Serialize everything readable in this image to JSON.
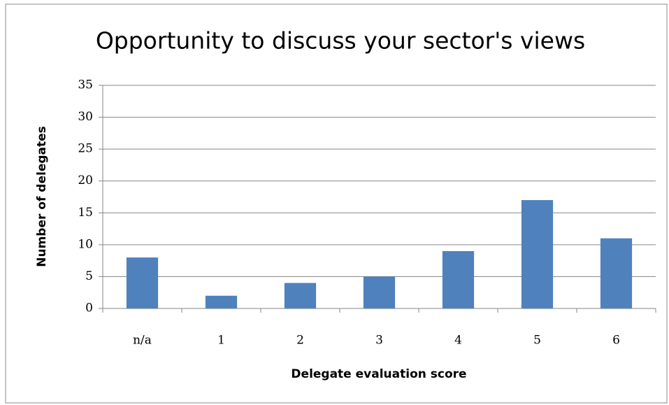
{
  "chart_data": {
    "type": "bar",
    "title": "Opportunity to discuss your sector's views",
    "x_label": "Delegate evaluation score",
    "y_label": "Number of delegates",
    "categories": [
      "n/a",
      "1",
      "2",
      "3",
      "4",
      "5",
      "6"
    ],
    "values": [
      8,
      2,
      4,
      5,
      9,
      17,
      11
    ],
    "color": "#4f81bd",
    "ylim": [
      0,
      35
    ],
    "yticks": [
      0,
      5,
      10,
      15,
      20,
      25,
      30,
      35
    ],
    "grid": true
  }
}
